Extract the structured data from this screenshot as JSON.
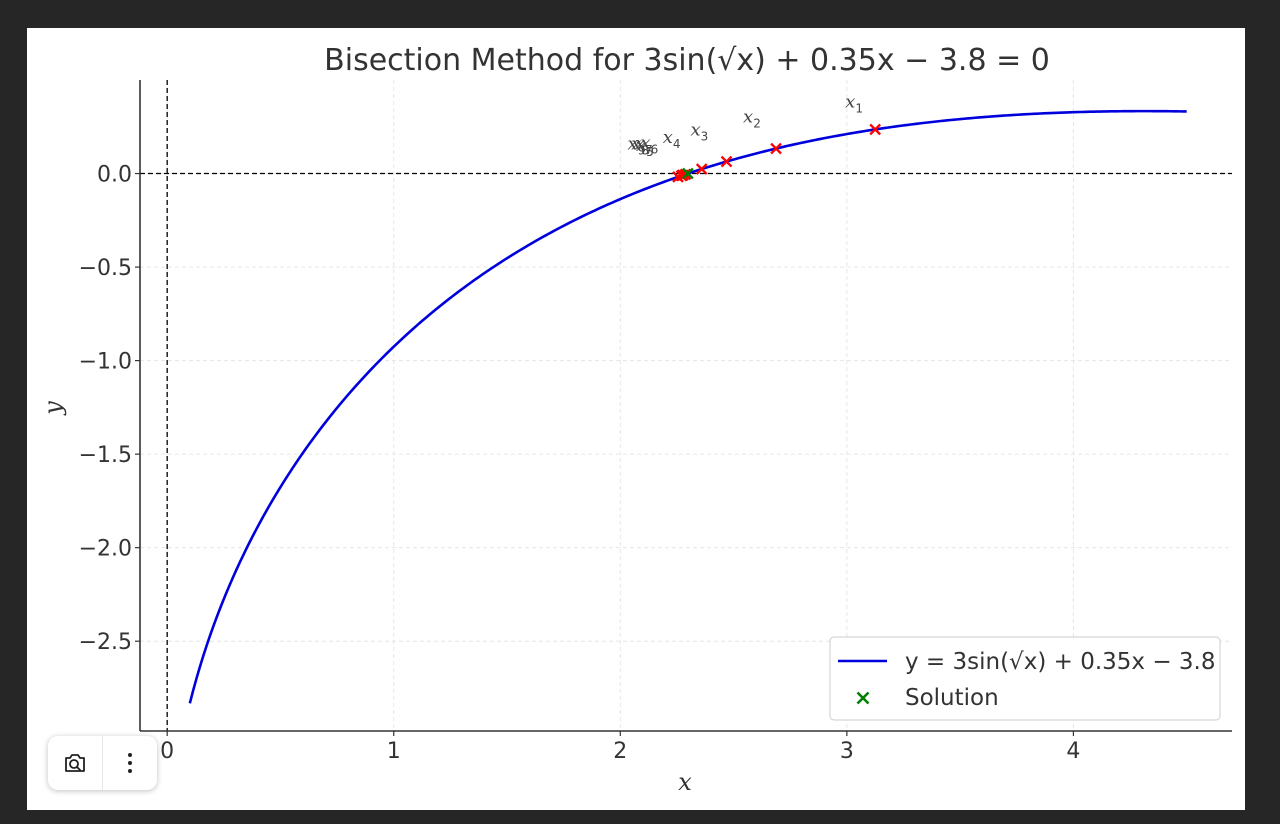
{
  "chart_data": {
    "type": "line",
    "title": "Bisection Method for 3sin(√x) + 0.35x − 3.8 = 0",
    "xlabel": "x",
    "ylabel": "y",
    "xlim": [
      -0.12,
      4.7
    ],
    "ylim": [
      -2.98,
      0.5
    ],
    "xticks": [
      0,
      1,
      2,
      3,
      4
    ],
    "yticks": [
      0.0,
      -0.5,
      -1.0,
      -1.5,
      -2.0,
      -2.5
    ],
    "xtick_labels": [
      "0",
      "1",
      "2",
      "3",
      "4"
    ],
    "ytick_labels": [
      "0.0",
      "−0.5",
      "−1.0",
      "−1.5",
      "−2.0",
      "−2.5"
    ],
    "grid": true,
    "legend_position": "bottom-right",
    "function": {
      "name": "y = 3sin(√x) + 0.35x − 3.8",
      "color": "#0000dd",
      "x_start": 0.1,
      "x_end": 4.5,
      "samples": 300
    },
    "iterations": {
      "color": "#ff0000",
      "x": [
        3.125,
        2.6875,
        2.46875,
        2.359375,
        2.2546875,
        2.2875,
        2.2765625,
        2.2734375,
        2.2703125
      ],
      "labels": [
        "x1",
        "x2",
        "x3",
        "x4",
        "x5",
        "x6",
        "x7",
        "x8",
        "x9"
      ]
    },
    "solution": {
      "name": "Solution",
      "color": "#008000",
      "x": 2.2984375,
      "y": 0.0
    },
    "reference_lines": [
      {
        "axis": "y",
        "value": 0.0,
        "style": "dashed"
      },
      {
        "axis": "x",
        "value": 0.0,
        "style": "dashed"
      }
    ]
  },
  "toolbar": {
    "camera_icon": "camera-search-icon",
    "more_icon": "more-vertical-icon"
  }
}
